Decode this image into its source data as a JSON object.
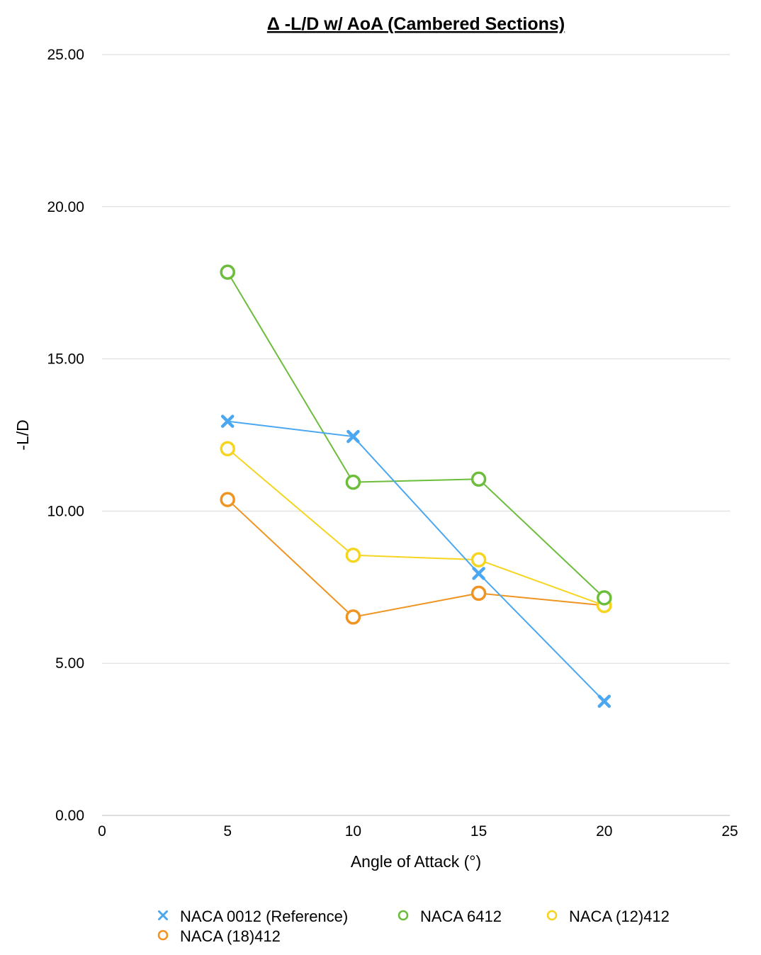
{
  "chart_data": {
    "type": "line",
    "title": "Δ -L/D w/ AoA (Cambered Sections)",
    "xlabel": "Angle of Attack (°)",
    "ylabel": "-L/D",
    "xlim": [
      0,
      25
    ],
    "ylim": [
      0,
      25
    ],
    "xticks": [
      "0",
      "5",
      "10",
      "15",
      "20",
      "25"
    ],
    "yticks": [
      "0.00",
      "5.00",
      "10.00",
      "15.00",
      "20.00",
      "25.00"
    ],
    "grid": "horizontal",
    "legend_position": "bottom",
    "x": [
      5,
      10,
      15,
      20
    ],
    "series": [
      {
        "name": "NACA 0012 (Reference)",
        "color": "#4aa7f0",
        "marker": "x",
        "values": [
          12.95,
          12.45,
          7.95,
          3.75
        ]
      },
      {
        "name": "NACA 6412",
        "color": "#6cbd3c",
        "marker": "circle",
        "values": [
          17.85,
          10.95,
          11.05,
          7.15
        ]
      },
      {
        "name": "NACA (12)412",
        "color": "#f5d520",
        "marker": "circle",
        "values": [
          12.05,
          8.55,
          8.4,
          6.9
        ]
      },
      {
        "name": "NACA (18)412",
        "color": "#ef9420",
        "marker": "circle",
        "values": [
          10.38,
          6.52,
          7.3,
          6.9
        ]
      }
    ]
  }
}
